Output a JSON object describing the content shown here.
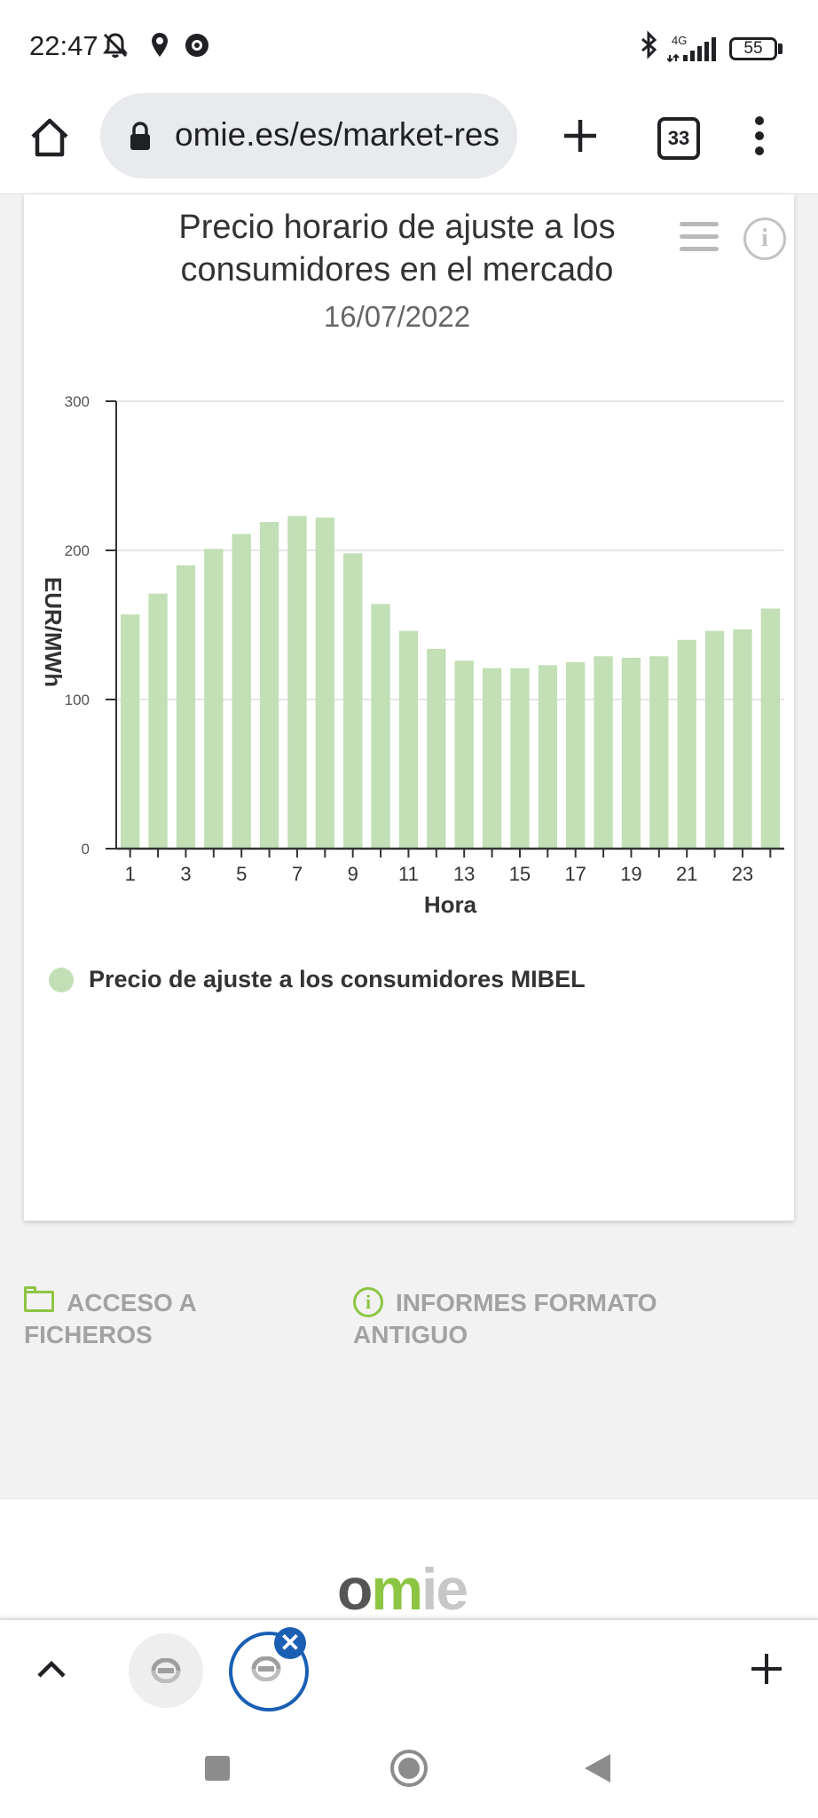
{
  "status_bar": {
    "time": "22:47",
    "icons": [
      "muted-bell-icon",
      "location-icon",
      "sync-app-icon",
      "bluetooth-icon",
      "signal-4g-icon"
    ],
    "network": "4G",
    "battery": "55"
  },
  "browser": {
    "url": "omie.es/es/market-res",
    "tab_count": "33",
    "icons": [
      "home-icon",
      "lock-icon",
      "new-tab-plus-icon",
      "more-vert-icon"
    ]
  },
  "chart_card": {
    "title_line1": "Precio horario de ajuste a los",
    "title_line2": "consumidores en el mercado",
    "date": "16/07/2022",
    "menu_icon": "hamburger-menu-icon",
    "info_icon": "info-icon",
    "info_glyph": "i"
  },
  "chart_data": {
    "type": "bar",
    "categories": [
      "1",
      "2",
      "3",
      "4",
      "5",
      "6",
      "7",
      "8",
      "9",
      "10",
      "11",
      "12",
      "13",
      "14",
      "15",
      "16",
      "17",
      "18",
      "19",
      "20",
      "21",
      "22",
      "23",
      "24"
    ],
    "series": [
      {
        "name": "Precio de ajuste a los consumidores MIBEL",
        "values": [
          157,
          171,
          190,
          201,
          211,
          219,
          223,
          222,
          198,
          164,
          146,
          134,
          126,
          121,
          121,
          123,
          125,
          129,
          128,
          129,
          140,
          146,
          147,
          161
        ],
        "color": "#c2dfb5"
      }
    ],
    "xlabel": "Hora",
    "ylabel": "EUR/MWh",
    "ylim": [
      0,
      300
    ],
    "y_ticks": [
      "0",
      "100",
      "200",
      "300"
    ],
    "x_tick_labels": [
      "1",
      "3",
      "5",
      "7",
      "9",
      "11",
      "13",
      "15",
      "17",
      "19",
      "21",
      "23"
    ],
    "grid": true,
    "legend": "bottom-left"
  },
  "links": {
    "files_line1": "ACCESO A",
    "files_line2": "FICHEROS",
    "reports_line1": "INFORMES FORMATO",
    "reports_line2": "ANTIGUO",
    "files_icon": "folder-icon",
    "reports_icon": "info-circle-icon",
    "reports_glyph": "i"
  },
  "footer": {
    "logo_part1": "o",
    "logo_part2": "m",
    "logo_part3": "ie",
    "colors": {
      "dark": "#555555",
      "green": "#8cc541",
      "light": "#c7c7c7"
    }
  },
  "tab_strip": {
    "icons": [
      "chevron-up-icon",
      "tab-favicon-icon",
      "tab-close-icon",
      "add-tab-icon"
    ],
    "close_glyph": "✕",
    "add_glyph": "+"
  },
  "nav_bar": {
    "icons": [
      "recents-square-icon",
      "home-circle-icon",
      "back-triangle-icon"
    ]
  },
  "colors": {
    "bar": "#c2dfb5",
    "accent_green": "#8cc541",
    "chrome_blue": "#1a5fb4",
    "link_grey": "#a2a2a2"
  }
}
